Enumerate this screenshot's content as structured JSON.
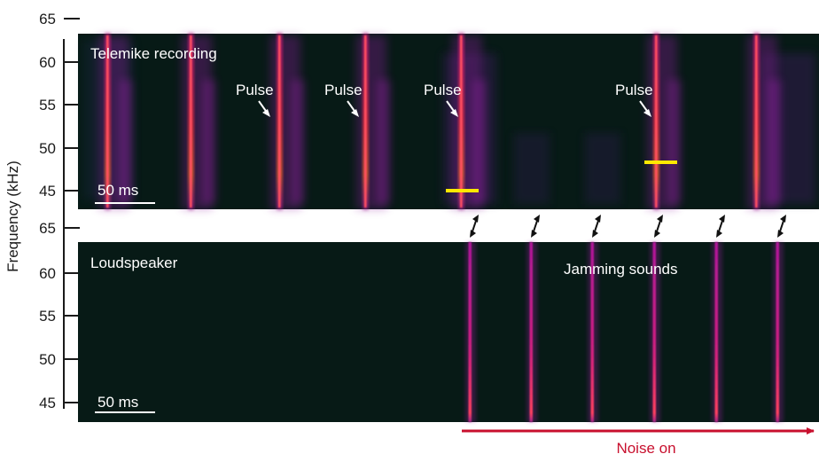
{
  "figure": {
    "y_axis_label": "Frequency (kHz)",
    "y_ticks": [
      "65",
      "60",
      "55",
      "50",
      "45"
    ],
    "colors": {
      "panel_background": "#071a16",
      "pulse_core": "#ff3a4a",
      "pulse_glow": "#b0189a",
      "yellow_marker": "#ffe800",
      "noise_arrow": "#c8102e"
    }
  },
  "top_panel": {
    "title": "Telemike recording",
    "scale_bar_label": "50 ms",
    "pulse_label": "Pulse"
  },
  "bottom_panel": {
    "title": "Loudspeaker",
    "jamming_label": "Jamming sounds",
    "scale_bar_label": "50 ms"
  },
  "noise_indicator": {
    "label": "Noise on"
  }
}
